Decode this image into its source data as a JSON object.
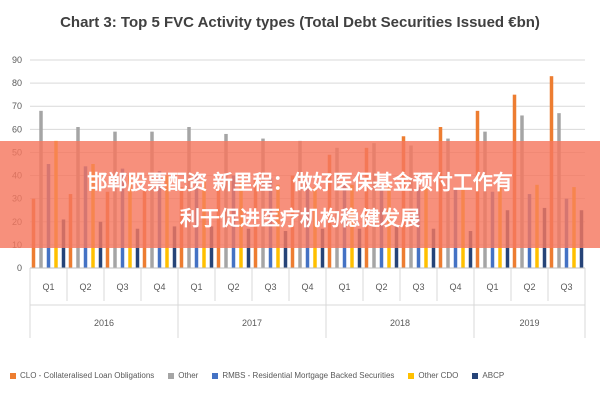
{
  "page": {
    "overlay_line1": "邯郸股票配资 新里程：做好医保基金预付工作有",
    "overlay_line2": "利于促进医疗机构稳健发展"
  },
  "colors": {
    "CLO": "#ed7d31",
    "Other": "#a5a5a5",
    "RMBS": "#4472c4",
    "OtherCDO": "#ffc000",
    "ABCP": "#264478",
    "grid": "#d9d9d9"
  },
  "chart_data": {
    "type": "bar",
    "title": "Chart 3: Top 5 FVC Activity types (Total Debt Securities Issued €bn)",
    "xlabel": "",
    "ylabel": "",
    "ylim": [
      0,
      90
    ],
    "yticks": [
      0,
      10,
      20,
      30,
      40,
      50,
      60,
      70,
      80,
      90
    ],
    "grid": true,
    "legend_position": "bottom",
    "categories": [
      "Q1",
      "Q2",
      "Q3",
      "Q4",
      "Q1",
      "Q2",
      "Q3",
      "Q4",
      "Q1",
      "Q2",
      "Q3",
      "Q4",
      "Q1",
      "Q2",
      "Q3"
    ],
    "groups": [
      {
        "label": "2016",
        "span": 4
      },
      {
        "label": "2017",
        "span": 4
      },
      {
        "label": "2018",
        "span": 4
      },
      {
        "label": "2019",
        "span": 3
      }
    ],
    "series": [
      {
        "name": "CLO - Collateralised Loan Obligations",
        "key": "CLO",
        "values": [
          30,
          32,
          33,
          34,
          35,
          36,
          38,
          40,
          49,
          52,
          57,
          61,
          68,
          75,
          83
        ]
      },
      {
        "name": "Other",
        "key": "Other",
        "values": [
          68,
          61,
          59,
          59,
          61,
          58,
          56,
          55,
          52,
          54,
          53,
          56,
          59,
          66,
          67
        ]
      },
      {
        "name": "RMBS - Residential Mortgage Backed Securities",
        "key": "RMBS",
        "values": [
          45,
          44,
          43,
          42,
          41,
          40,
          39,
          38,
          37,
          36,
          35,
          34,
          33,
          32,
          30
        ]
      },
      {
        "name": "Other CDO",
        "key": "OtherCDO",
        "values": [
          55,
          45,
          40,
          40,
          38,
          37,
          36,
          35,
          36,
          36,
          35,
          34,
          35,
          36,
          35
        ]
      },
      {
        "name": "ABCP",
        "key": "ABCP",
        "values": [
          21,
          20,
          17,
          18,
          18,
          17,
          16,
          17,
          17,
          18,
          17,
          16,
          25,
          26,
          25
        ]
      }
    ]
  }
}
